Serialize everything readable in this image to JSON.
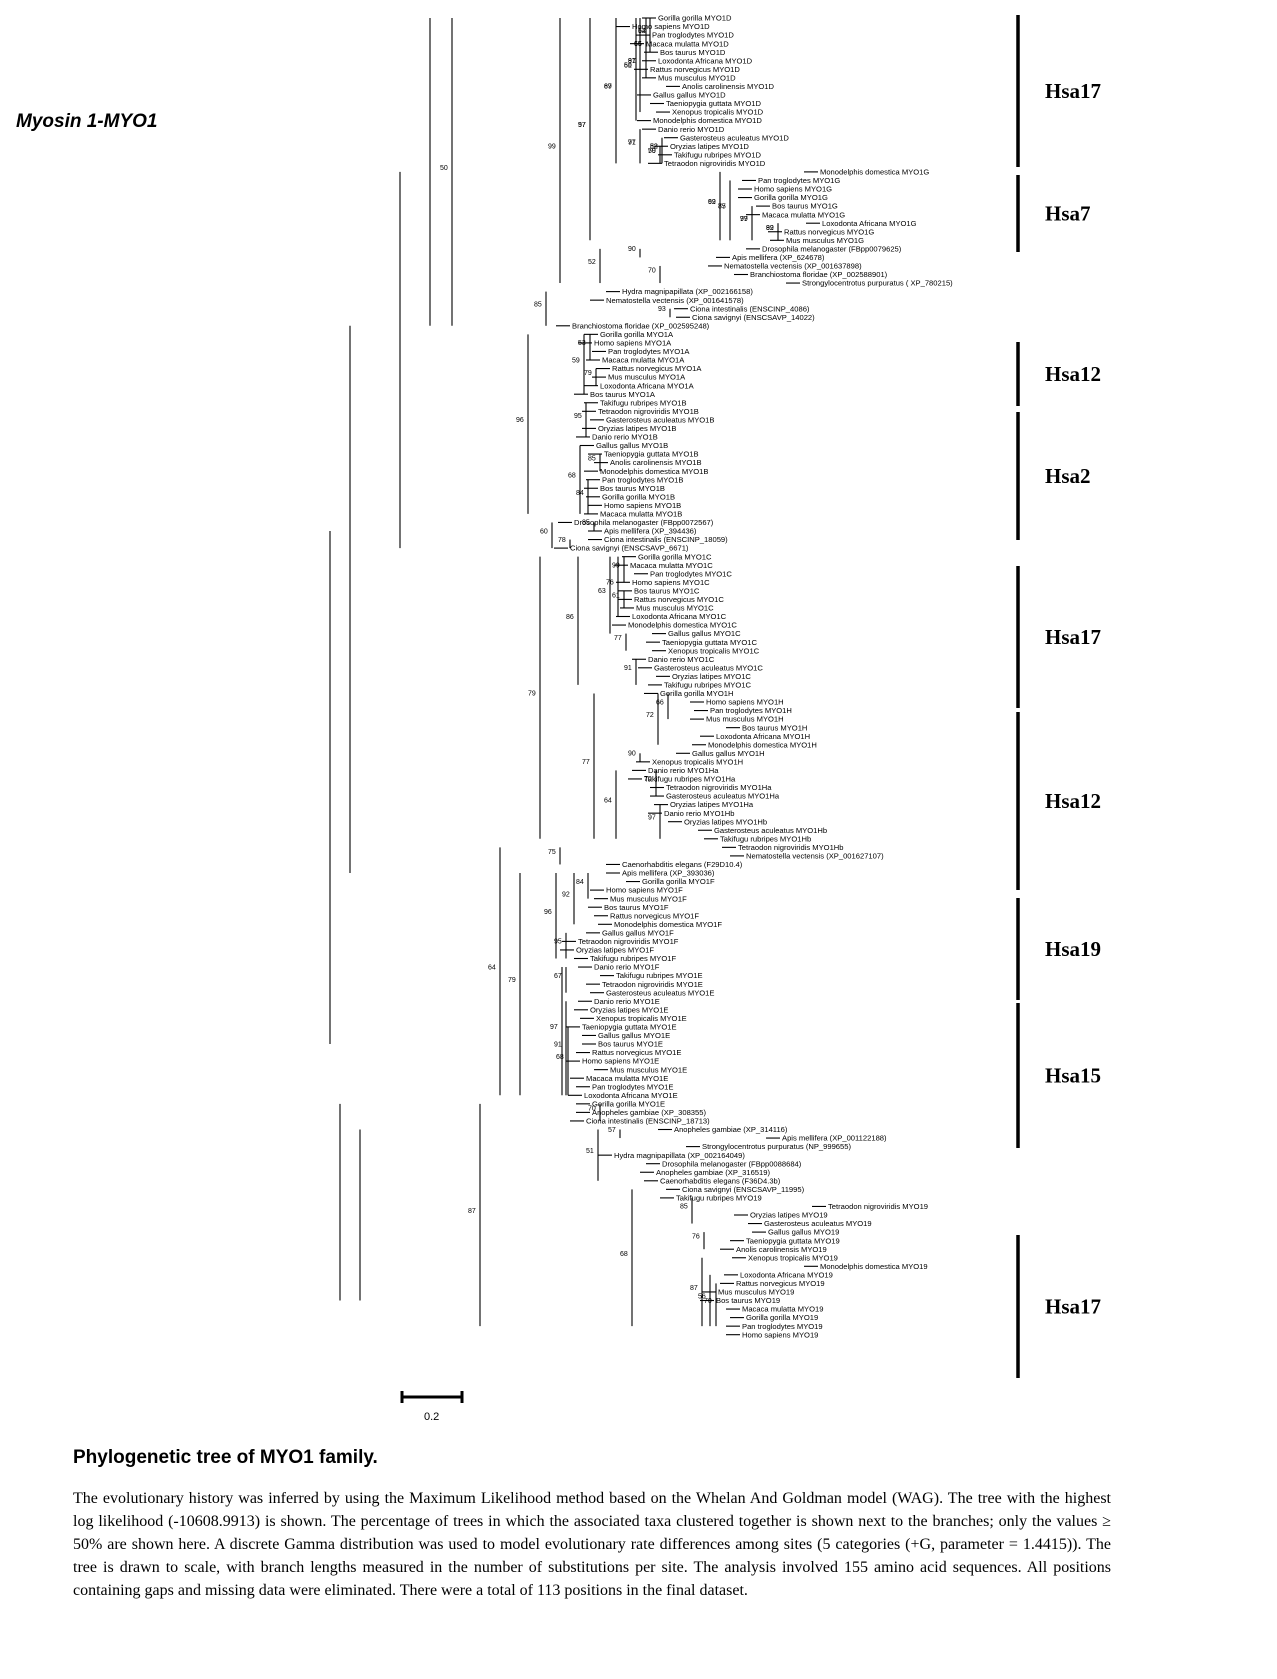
{
  "figure_title": "Myosin 1-MYO1",
  "scale_bar_label": "0.2",
  "caption_title": "Phylogenetic tree of MYO1 family.",
  "caption_text": "The evolutionary history was inferred by using the Maximum Likelihood method based on the Whelan And Goldman model (WAG). The tree with the highest log likelihood (-10608.9913) is shown. The percentage of trees in which the associated taxa clustered together is shown next to the branches; only the values ≥ 50% are shown here. A discrete Gamma distribution was used to model evolutionary rate differences among sites (5 categories (+G, parameter = 1.4415)). The tree is drawn to scale, with branch lengths measured in the number of substitutions per site. The analysis involved 155 amino acid sequences. All positions containing gaps and missing data were eliminated. There were a total of 113 positions in the final dataset.",
  "chromosome_groups": [
    "Hsa17",
    "Hsa7",
    "Hsa12",
    "Hsa2",
    "Hsa17",
    "Hsa12",
    "Hsa19",
    "Hsa15",
    "Hsa17"
  ],
  "leaves": [
    "Gorilla gorilla MYO1D",
    "Homo sapiens MYO1D",
    "Pan troglodytes MYO1D",
    "Macaca mulatta MYO1D",
    "Bos taurus MYO1D",
    "Loxodonta Africana MYO1D",
    "Rattus norvegicus MYO1D",
    "Mus musculus MYO1D",
    "Anolis carolinensis MYO1D",
    "Gallus gallus MYO1D",
    "Taeniopygia guttata MYO1D",
    "Xenopus tropicalis MYO1D",
    "Monodelphis domestica MYO1D",
    "Danio rerio MYO1D",
    "Gasterosteus aculeatus MYO1D",
    "Oryzias latipes MYO1D",
    "Takifugu rubripes MYO1D",
    "Tetraodon nigroviridis MYO1D",
    "Monodelphis domestica MYO1G",
    "Pan troglodytes MYO1G",
    "Homo sapiens MYO1G",
    "Gorilla gorilla MYO1G",
    "Bos taurus MYO1G",
    "Macaca mulatta MYO1G",
    "Loxodonta Africana MYO1G",
    "Rattus norvegicus MYO1G",
    "Mus musculus MYO1G",
    "Drosophila melanogaster (FBpp0079625)",
    "Apis mellifera (XP_624678)",
    "Nematostella vectensis (XP_001637898)",
    "Branchiostoma floridae (XP_002588901)",
    "Strongylocentrotus purpuratus ( XP_780215)",
    "Hydra magnipapillata (XP_002166158)",
    "Nematostella vectensis (XP_001641578)",
    "Ciona intestinalis (ENSCINP_4086)",
    "Ciona savignyi (ENSCSAVP_14022)",
    "Branchiostoma floridae (XP_002595248)",
    "Gorilla gorilla MYO1A",
    "Homo sapiens MYO1A",
    "Pan troglodytes MYO1A",
    "Macaca mulatta MYO1A",
    "Rattus norvegicus MYO1A",
    "Mus musculus MYO1A",
    "Loxodonta Africana MYO1A",
    "Bos taurus MYO1A",
    "Takifugu rubripes MYO1B",
    "Tetraodon nigroviridis MYO1B",
    "Gasterosteus aculeatus MYO1B",
    "Oryzias latipes MYO1B",
    "Danio rerio MYO1B",
    "Gallus gallus MYO1B",
    "Taeniopygia guttata MYO1B",
    "Anolis carolinensis MYO1B",
    "Monodelphis domestica MYO1B",
    "Pan troglodytes MYO1B",
    "Bos taurus MYO1B",
    "Gorilla gorilla MYO1B",
    "Homo sapiens MYO1B",
    "Macaca mulatta MYO1B",
    "Drosophila melanogaster (FBpp0072567)",
    "Apis mellifera (XP_394436)",
    "Ciona intestinalis (ENSCINP_18059)",
    "Ciona savignyi (ENSCSAVP_6671)",
    "Gorilla gorilla MYO1C",
    "Macaca mulatta MYO1C",
    "Pan troglodytes MYO1C",
    "Homo sapiens MYO1C",
    "Bos taurus MYO1C",
    "Rattus norvegicus MYO1C",
    "Mus musculus MYO1C",
    "Loxodonta Africana MYO1C",
    "Monodelphis domestica MYO1C",
    "Gallus gallus MYO1C",
    "Taeniopygia guttata MYO1C",
    "Xenopus tropicalis MYO1C",
    "Danio rerio MYO1C",
    "Gasterosteus aculeatus MYO1C",
    "Oryzias latipes MYO1C",
    "Takifugu rubripes MYO1C",
    "Gorilla gorilla MYO1H",
    "Homo sapiens MYO1H",
    "Pan troglodytes MYO1H",
    "Mus musculus MYO1H",
    "Bos taurus MYO1H",
    "Loxodonta Africana MYO1H",
    "Monodelphis domestica MYO1H",
    "Gallus gallus MYO1H",
    "Xenopus tropicalis MYO1H",
    "Danio rerio MYO1Ha",
    "Takifugu rubripes MYO1Ha",
    "Tetraodon nigroviridis MYO1Ha",
    "Gasterosteus aculeatus MYO1Ha",
    "Oryzias latipes MYO1Ha",
    "Danio rerio MYO1Hb",
    "Oryzias latipes MYO1Hb",
    "Gasterosteus aculeatus MYO1Hb",
    "Takifugu rubripes MYO1Hb",
    "Tetraodon nigroviridis MYO1Hb",
    "Nematostella vectensis (XP_001627107)",
    "Caenorhabditis elegans (F29D10.4)",
    "Apis mellifera (XP_393036)",
    "Gorilla gorilla MYO1F",
    "Homo sapiens MYO1F",
    "Mus musculus MYO1F",
    "Bos taurus MYO1F",
    "Rattus norvegicus MYO1F",
    "Monodelphis domestica MYO1F",
    "Gallus gallus MYO1F",
    "Tetraodon nigroviridis MYO1F",
    "Oryzias latipes MYO1F",
    "Takifugu rubripes MYO1F",
    "Danio rerio MYO1F",
    "Takifugu rubripes MYO1E",
    "Tetraodon nigroviridis MYO1E",
    "Gasterosteus aculeatus MYO1E",
    "Danio rerio MYO1E",
    "Oryzias latipes MYO1E",
    "Xenopus tropicalis MYO1E",
    "Taeniopygia guttata MYO1E",
    "Gallus gallus MYO1E",
    "Bos taurus MYO1E",
    "Rattus norvegicus MYO1E",
    "Homo sapiens MYO1E",
    "Mus musculus MYO1E",
    "Macaca mulatta MYO1E",
    "Pan troglodytes MYO1E",
    "Loxodonta Africana MYO1E",
    "Gorilla gorilla MYO1E",
    "Anopheles gambiae (XP_308355)",
    "Ciona intestinalis (ENSCINP_18713)",
    "Anopheles gambiae (XP_314116)",
    "Apis mellifera (XP_001122188)",
    "Strongylocentrotus purpuratus (NP_999655)",
    "Hydra magnipapillata (XP_002164049)",
    "Drosophila melanogaster (FBpp0088684)",
    "Anopheles gambiae (XP_316519)",
    "Caenorhabditis elegans (F36D4.3b)",
    "Ciona savignyi (ENSCSAVP_11995)",
    "Takifugu rubripes MYO19",
    "Tetraodon nigroviridis MYO19",
    "Oryzias latipes MYO19",
    "Gasterosteus aculeatus MYO19",
    "Gallus gallus MYO19",
    "Taeniopygia guttata MYO19",
    "Anolis carolinensis MYO19",
    "Xenopus tropicalis MYO19",
    "Monodelphis domestica MYO19",
    "Loxodonta Africana MYO19",
    "Rattus norvegicus MYO19",
    "Mus musculus MYO19",
    "Bos taurus MYO19",
    "Macaca mulatta MYO19",
    "Gorilla gorilla MYO19",
    "Pan troglodytes MYO19",
    "Homo sapiens MYO19"
  ],
  "bootstrap_values": [
    "62",
    "65",
    "91",
    "60",
    "69",
    "71",
    "82",
    "79",
    "62",
    "77",
    "99",
    "82",
    "97",
    "90",
    "70",
    "52",
    "99",
    "50",
    "93",
    "85",
    "59",
    "53",
    "79",
    "95",
    "68",
    "85",
    "84",
    "96",
    "85",
    "78",
    "60",
    "76",
    "99",
    "61",
    "63",
    "77",
    "91",
    "86",
    "72",
    "66",
    "90",
    "70",
    "97",
    "77",
    "64",
    "79",
    "75",
    "92",
    "84",
    "95",
    "96",
    "67",
    "97",
    "91",
    "68",
    "79",
    "64",
    "70",
    "51",
    "57",
    "68",
    "85",
    "76",
    "87",
    "56",
    "70",
    "87",
    "54",
    "66",
    "87",
    "51",
    "87",
    "97",
    "53",
    "50",
    "99",
    "85",
    "77",
    "99",
    "57"
  ]
}
